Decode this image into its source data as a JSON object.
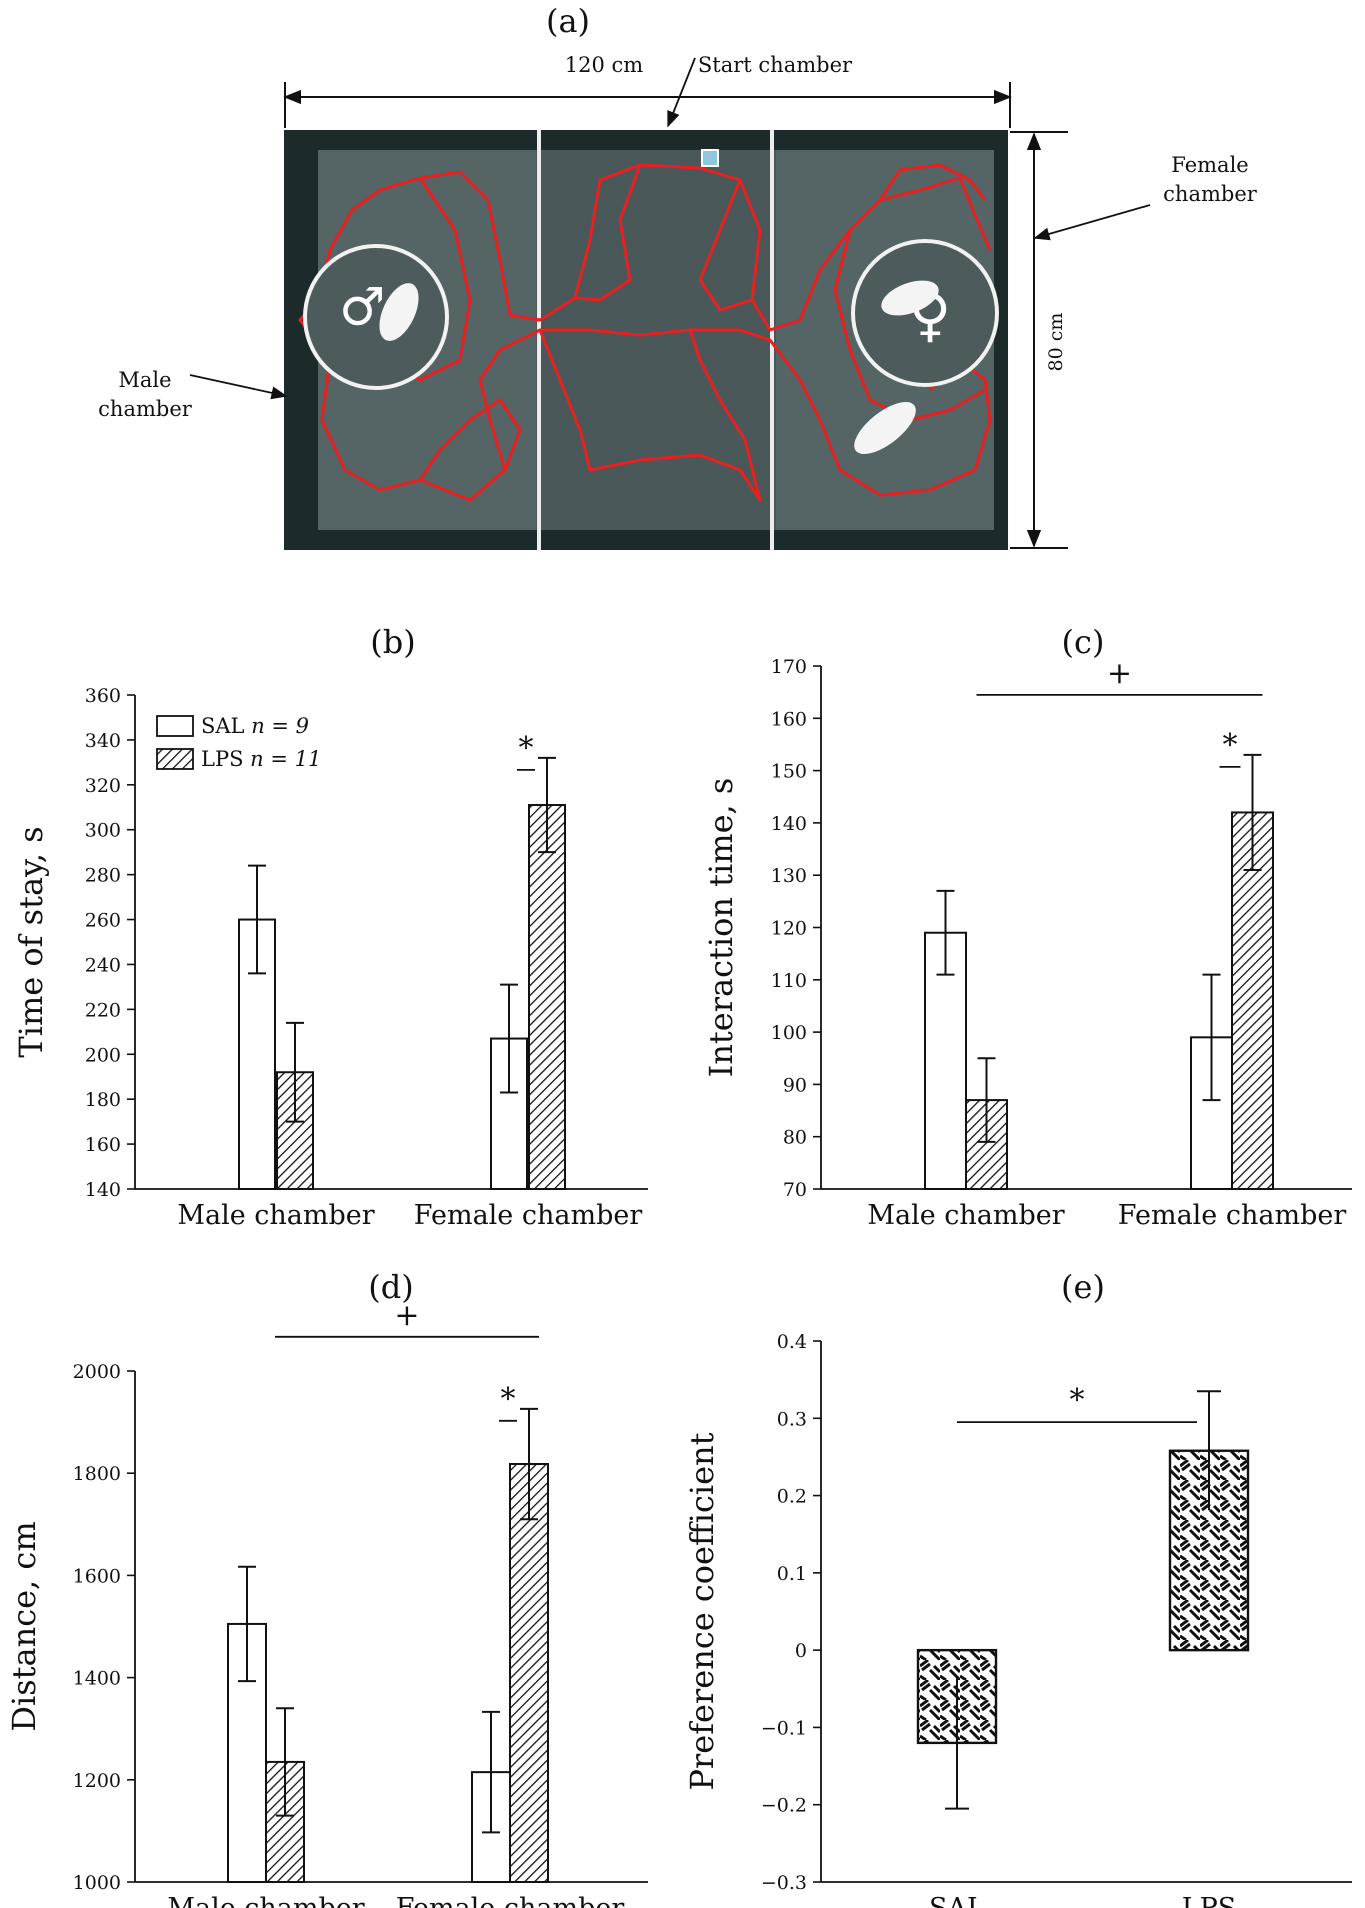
{
  "figure": {
    "panel_a": {
      "label": "(a)",
      "dimension_width": "120 cm",
      "dimension_height": "80 cm",
      "start_chamber": "Start chamber",
      "female_chamber": [
        "Female",
        "chamber"
      ],
      "male_chamber": [
        "Male",
        "chamber"
      ],
      "male_symbol": "♂",
      "female_symbol": "♀"
    }
  },
  "chart_data": [
    {
      "id": "b",
      "panel_label": "(b)",
      "type": "bar",
      "ylabel": "Time of stay, s",
      "ylim": [
        140,
        360
      ],
      "yticks": [
        140,
        160,
        180,
        200,
        220,
        240,
        260,
        280,
        300,
        320,
        340,
        360
      ],
      "categories": [
        "Male chamber",
        "Female chamber"
      ],
      "series": [
        {
          "name": "SAL",
          "values": [
            260,
            207
          ],
          "errors": [
            24,
            24
          ],
          "fill": "open"
        },
        {
          "name": "LPS",
          "values": [
            192,
            311
          ],
          "errors": [
            22,
            21
          ],
          "fill": "hatched"
        }
      ],
      "legend": {
        "placement": "top-left",
        "entries": [
          {
            "label": "SAL",
            "n": "n = 9"
          },
          {
            "label": "LPS",
            "n": "n = 11"
          }
        ]
      },
      "annotations": [
        {
          "text": "*",
          "between": "SAL vs LPS, Female chamber"
        }
      ],
      "grid": false
    },
    {
      "id": "c",
      "panel_label": "(c)",
      "type": "bar",
      "ylabel": "Interaction time, s",
      "ylim": [
        70,
        170
      ],
      "yticks": [
        70,
        80,
        90,
        100,
        110,
        120,
        130,
        140,
        150,
        160,
        170
      ],
      "categories": [
        "Male chamber",
        "Female chamber"
      ],
      "series": [
        {
          "name": "SAL",
          "values": [
            119,
            99
          ],
          "errors": [
            8,
            12
          ]
        },
        {
          "name": "LPS",
          "values": [
            87,
            142
          ],
          "errors": [
            8,
            11
          ]
        }
      ],
      "annotations": [
        {
          "text": "*",
          "between": "SAL vs LPS, Female chamber"
        },
        {
          "text": "+",
          "between": "LPS Male chamber vs LPS Female chamber"
        }
      ],
      "grid": false
    },
    {
      "id": "d",
      "panel_label": "(d)",
      "type": "bar",
      "ylabel": "Distance, cm",
      "ylim": [
        1000,
        2000
      ],
      "yticks": [
        1000,
        1200,
        1400,
        1600,
        1800,
        2000
      ],
      "categories": [
        "Male chamber",
        "Female chamber"
      ],
      "series": [
        {
          "name": "SAL",
          "values": [
            1505,
            1215
          ],
          "errors": [
            112,
            118
          ]
        },
        {
          "name": "LPS",
          "values": [
            1235,
            1818
          ],
          "errors": [
            105,
            108
          ]
        }
      ],
      "annotations": [
        {
          "text": "*",
          "between": "SAL vs LPS, Female chamber"
        },
        {
          "text": "+",
          "between": "LPS Male chamber vs LPS Female chamber"
        }
      ],
      "grid": false
    },
    {
      "id": "e",
      "panel_label": "(e)",
      "type": "bar",
      "ylabel": "Preference coefficient",
      "ylim": [
        -0.3,
        0.4
      ],
      "yticks": [
        "−0.3",
        "−0.2",
        "−0.1",
        "0",
        "0.1",
        "0.2",
        "0.3",
        "0.4"
      ],
      "categories": [
        "SAL",
        "LPS"
      ],
      "values": [
        -0.12,
        0.258
      ],
      "errors": [
        0.085,
        0.077
      ],
      "annotations": [
        {
          "text": "*",
          "between": "SAL vs LPS"
        }
      ],
      "grid": false
    }
  ]
}
